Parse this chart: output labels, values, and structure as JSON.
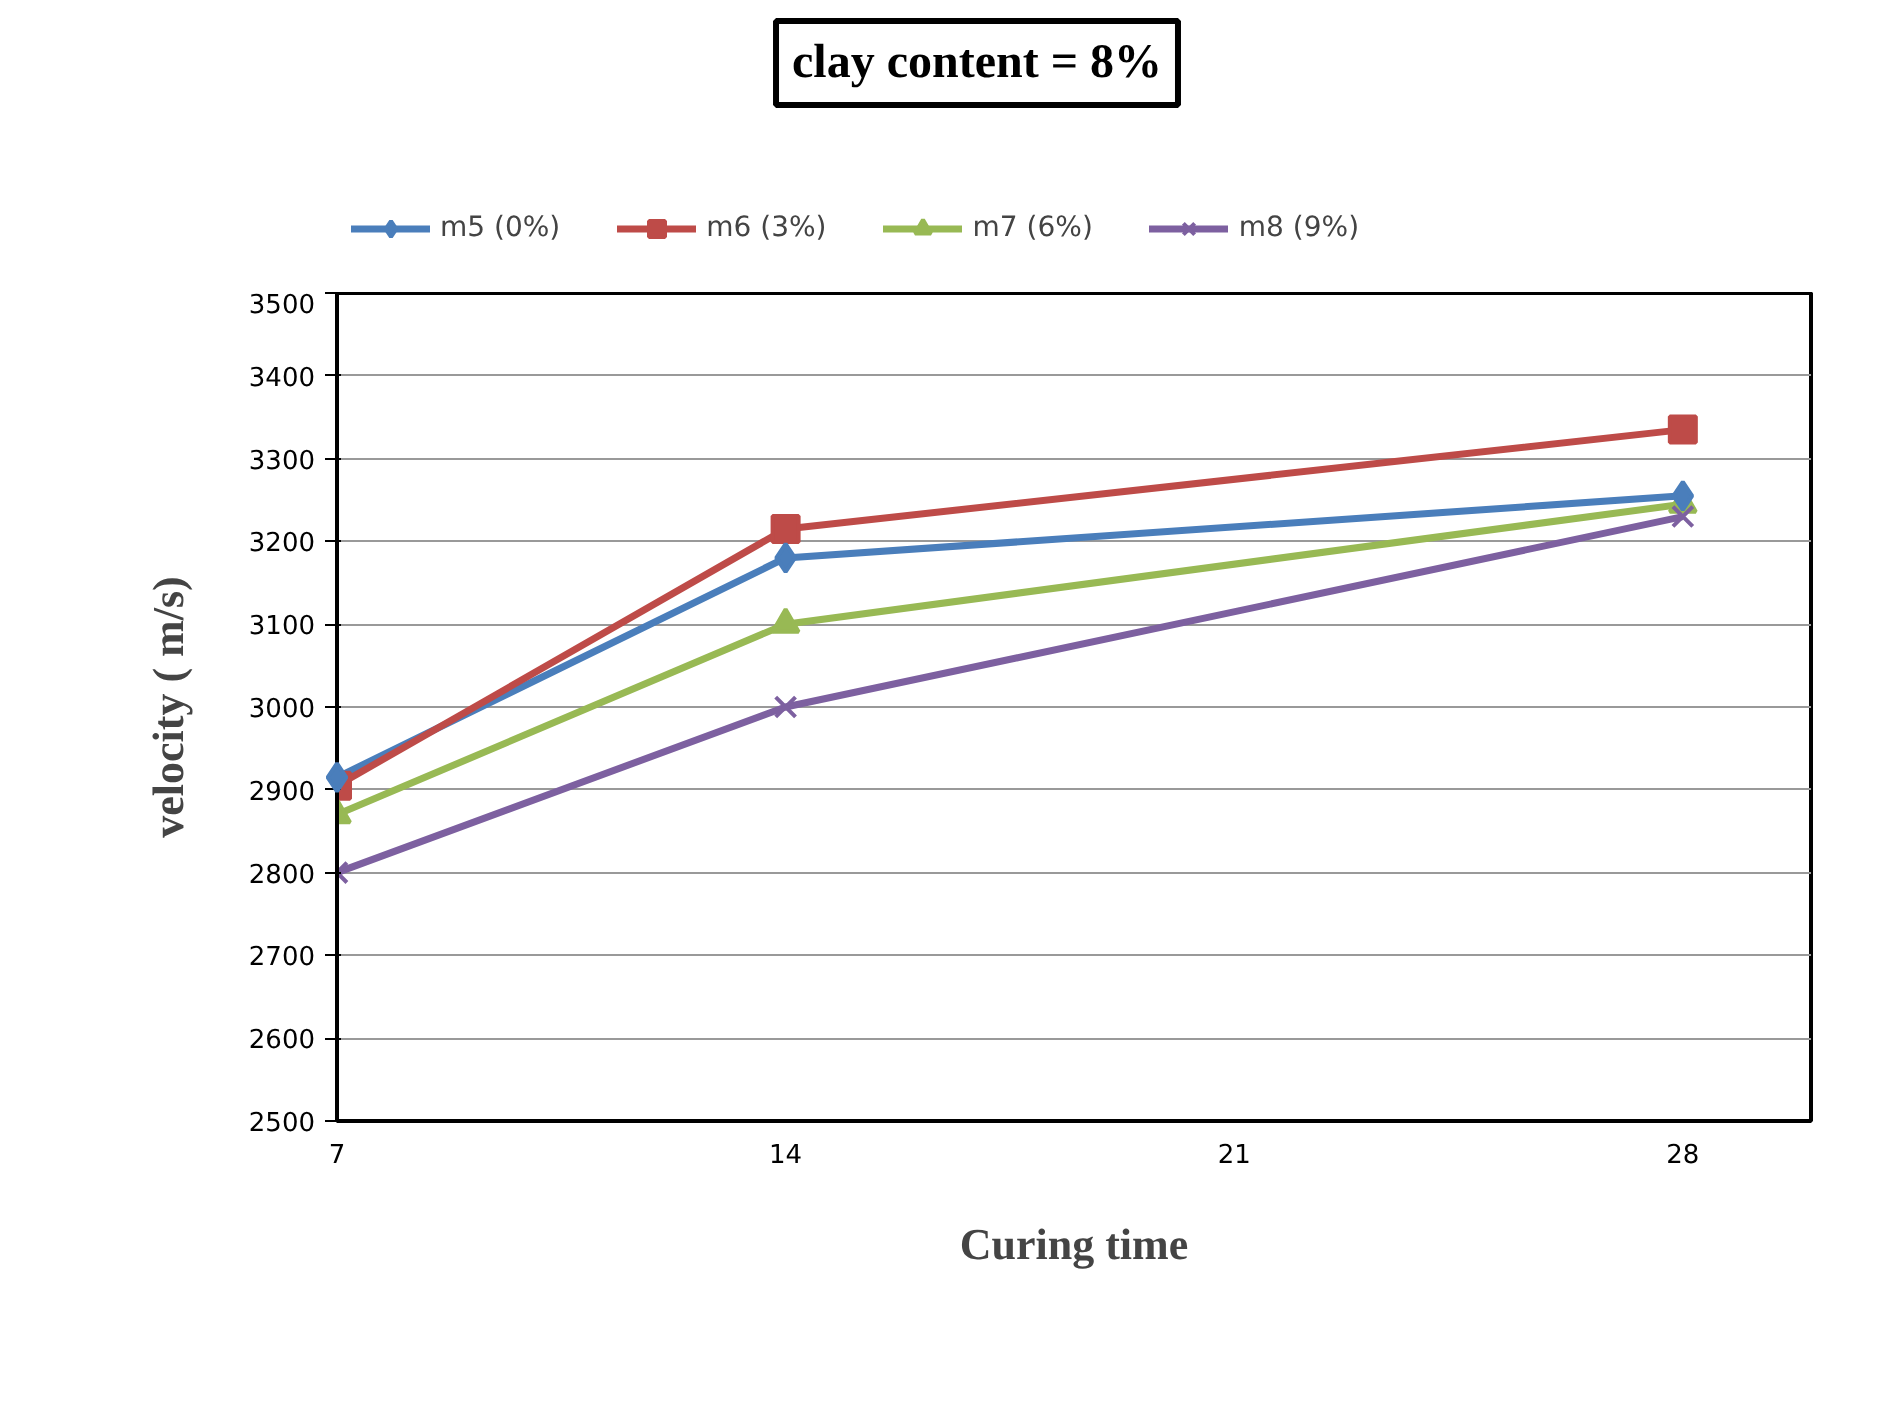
{
  "chart_data": {
    "type": "line",
    "title": "clay content = 8%",
    "xlabel": "Curing time",
    "ylabel": "velocity ( m/s)",
    "x": [
      7,
      14,
      28
    ],
    "xlim": [
      7,
      30
    ],
    "xticks": [
      7,
      14,
      21,
      28
    ],
    "ylim": [
      2500,
      3500
    ],
    "yticks": [
      2500,
      2600,
      2700,
      2800,
      2900,
      3000,
      3100,
      3200,
      3300,
      3400,
      3500
    ],
    "grid": "y",
    "legend": "top",
    "series": [
      {
        "name": "m5 (0%)",
        "color": "#4a7ebb",
        "marker": "diamond",
        "values": [
          2915,
          3180,
          3255
        ]
      },
      {
        "name": "m6 (3%)",
        "color": "#be4b48",
        "marker": "square",
        "values": [
          2905,
          3215,
          3335
        ]
      },
      {
        "name": "m7 (6%)",
        "color": "#98b954",
        "marker": "triangle",
        "values": [
          2870,
          3100,
          3245
        ]
      },
      {
        "name": "m8 (9%)",
        "color": "#7d60a0",
        "marker": "cross",
        "values": [
          2800,
          3000,
          3230
        ]
      }
    ]
  }
}
